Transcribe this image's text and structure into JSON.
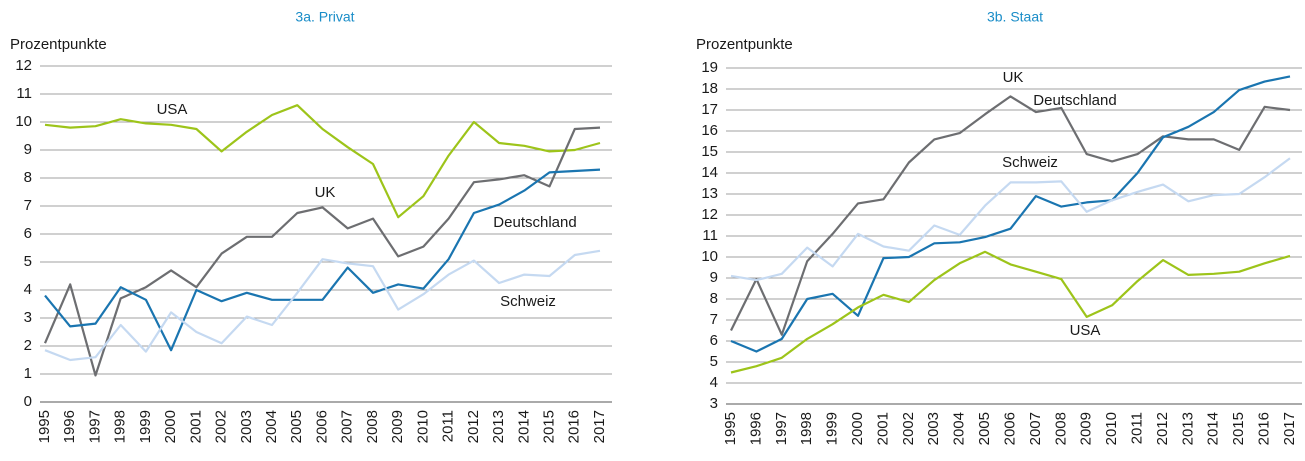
{
  "chart_data": [
    {
      "type": "line",
      "title": "3a. Privat",
      "y_label": "Prozentpunkte",
      "categories": [
        "1995",
        "1996",
        "1997",
        "1998",
        "1999",
        "2000",
        "2001",
        "2002",
        "2003",
        "2004",
        "2005",
        "2006",
        "2007",
        "2008",
        "2009",
        "2010",
        "2011",
        "2012",
        "2013",
        "2014",
        "2015",
        "2016",
        "2017"
      ],
      "ylim": [
        0,
        12
      ],
      "yticks": [
        0,
        1,
        2,
        3,
        4,
        5,
        6,
        7,
        8,
        9,
        10,
        11,
        12
      ],
      "grid": true,
      "series": [
        {
          "name": "USA",
          "color": "#9dc41a",
          "values": [
            9.9,
            9.8,
            9.85,
            10.1,
            9.95,
            9.9,
            9.75,
            8.95,
            9.65,
            10.25,
            10.6,
            9.75,
            9.1,
            8.5,
            6.6,
            7.35,
            8.8,
            10.0,
            9.25,
            9.15,
            8.95,
            9.0,
            9.25
          ]
        },
        {
          "name": "UK",
          "color": "#6d6e71",
          "values": [
            2.1,
            4.2,
            0.95,
            3.7,
            4.1,
            4.7,
            4.1,
            5.3,
            5.9,
            5.9,
            6.75,
            6.95,
            6.2,
            6.55,
            5.2,
            5.55,
            6.55,
            7.85,
            7.95,
            8.1,
            7.7,
            9.75,
            9.8
          ]
        },
        {
          "name": "Deutschland",
          "color": "#1a75b0",
          "values": [
            3.8,
            2.7,
            2.8,
            4.1,
            3.65,
            1.85,
            4.0,
            3.6,
            3.9,
            3.65,
            3.65,
            3.65,
            4.8,
            3.9,
            4.2,
            4.05,
            5.1,
            6.75,
            7.05,
            7.55,
            8.2,
            8.25,
            8.3
          ]
        },
        {
          "name": "Schweiz",
          "color": "#c5d9f1",
          "values": [
            1.85,
            1.5,
            1.6,
            2.75,
            1.8,
            3.2,
            2.5,
            2.1,
            3.05,
            2.75,
            3.9,
            5.1,
            4.95,
            4.85,
            3.3,
            3.85,
            4.55,
            5.05,
            4.25,
            4.55,
            4.5,
            5.25,
            5.4
          ]
        }
      ]
    },
    {
      "type": "line",
      "title": "3b. Staat",
      "y_label": "Prozentpunkte",
      "categories": [
        "1995",
        "1996",
        "1997",
        "1998",
        "1999",
        "2000",
        "2001",
        "2002",
        "2003",
        "2004",
        "2005",
        "2006",
        "2007",
        "2008",
        "2009",
        "2010",
        "2011",
        "2012",
        "2013",
        "2014",
        "2015",
        "2016",
        "2017"
      ],
      "ylim": [
        3,
        19
      ],
      "yticks": [
        3,
        4,
        5,
        6,
        7,
        8,
        9,
        10,
        11,
        12,
        13,
        14,
        15,
        16,
        17,
        18,
        19
      ],
      "grid": true,
      "series": [
        {
          "name": "UK",
          "color": "#6d6e71",
          "values": [
            6.5,
            8.95,
            6.3,
            9.8,
            11.1,
            12.55,
            12.75,
            14.5,
            15.6,
            15.9,
            16.8,
            17.65,
            16.9,
            17.1,
            14.9,
            14.55,
            14.9,
            15.75,
            15.6,
            15.6,
            15.1,
            17.15,
            17.0
          ]
        },
        {
          "name": "Deutschland",
          "color": "#1a75b0",
          "values": [
            6.0,
            5.5,
            6.1,
            8.0,
            8.25,
            7.2,
            9.95,
            10.0,
            10.65,
            10.7,
            10.95,
            11.35,
            12.9,
            12.4,
            12.6,
            12.7,
            14.0,
            15.7,
            16.2,
            16.9,
            17.95,
            18.35,
            18.6
          ]
        },
        {
          "name": "Schweiz",
          "color": "#c5d9f1",
          "values": [
            9.1,
            8.9,
            9.2,
            10.45,
            9.55,
            11.1,
            10.5,
            10.3,
            11.5,
            11.05,
            12.45,
            13.55,
            13.55,
            13.6,
            12.15,
            12.7,
            13.1,
            13.45,
            12.65,
            12.95,
            13.0,
            13.8,
            14.7
          ]
        },
        {
          "name": "USA",
          "color": "#9dc41a",
          "values": [
            4.5,
            4.8,
            5.2,
            6.1,
            6.8,
            7.6,
            8.2,
            7.85,
            8.9,
            9.7,
            10.25,
            9.65,
            9.3,
            8.95,
            7.15,
            7.7,
            8.85,
            9.85,
            9.15,
            9.2,
            9.3,
            9.7,
            10.05
          ]
        }
      ]
    }
  ]
}
